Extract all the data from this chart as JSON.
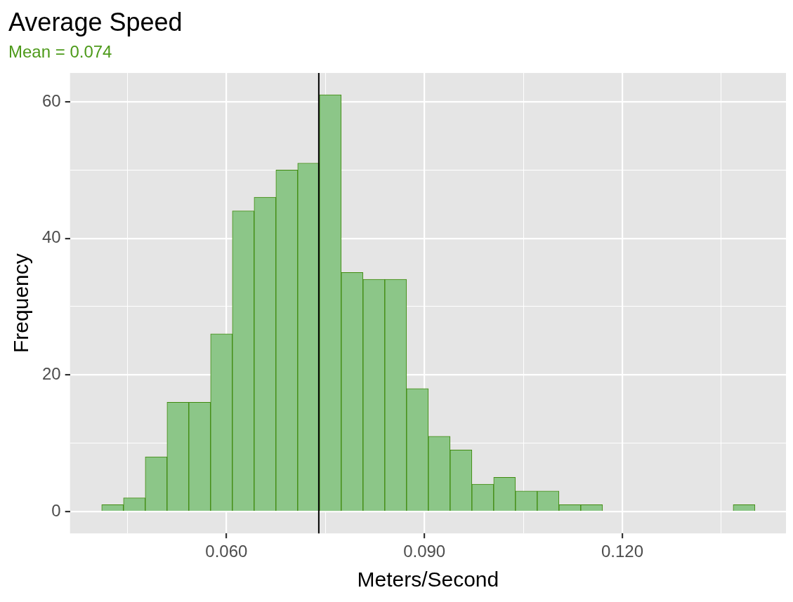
{
  "chart_data": {
    "type": "histogram",
    "title": "Average Speed",
    "subtitle": "Mean = 0.074",
    "xlabel": "Meters/Second",
    "ylabel": "Frequency",
    "bins": [
      0.0411,
      0.0444,
      0.0477,
      0.051,
      0.0543,
      0.0576,
      0.0609,
      0.0642,
      0.0675,
      0.0708,
      0.0741,
      0.0774,
      0.0807,
      0.084,
      0.0873,
      0.0906,
      0.0939,
      0.0972,
      0.1005,
      0.1038,
      0.1071,
      0.1104,
      0.1137,
      0.117,
      0.1203,
      0.1236,
      0.1269,
      0.1302,
      0.1335,
      0.1368,
      0.1401
    ],
    "values": [
      1,
      2,
      8,
      16,
      16,
      26,
      44,
      46,
      50,
      51,
      61,
      35,
      34,
      34,
      18,
      11,
      9,
      4,
      5,
      3,
      3,
      1,
      1,
      0,
      0,
      0,
      0,
      0,
      0,
      1
    ],
    "color": "#8cc688",
    "xlim": [
      0.0363,
      0.1448
    ],
    "ylim": [
      -3.2,
      64.2
    ],
    "xticks": [
      {
        "value": 0.045,
        "label": null
      },
      {
        "value": 0.06,
        "label": "0.060"
      },
      {
        "value": 0.075,
        "label": null
      },
      {
        "value": 0.09,
        "label": "0.090"
      },
      {
        "value": 0.105,
        "label": null
      },
      {
        "value": 0.12,
        "label": "0.120"
      },
      {
        "value": 0.135,
        "label": null
      }
    ],
    "yticks": [
      0,
      {
        "value": 10,
        "label": null
      },
      20,
      {
        "value": 30,
        "label": null
      },
      40,
      {
        "value": 50,
        "label": null
      },
      60
    ],
    "grid": true,
    "ref_lines": [
      {
        "axis": "x",
        "value": 0.074,
        "color": "#000000"
      }
    ],
    "legend": false
  }
}
